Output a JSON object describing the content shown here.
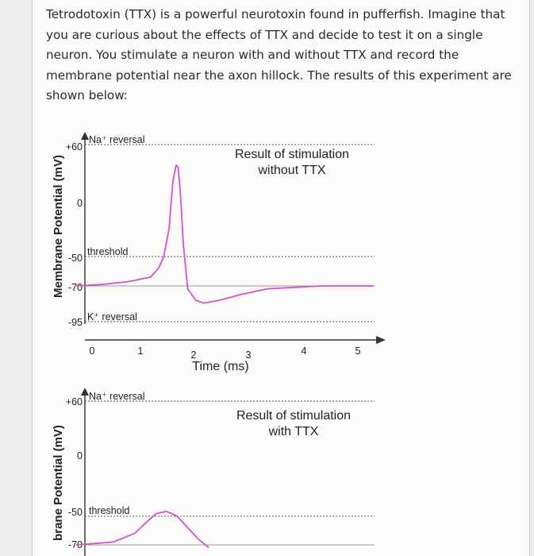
{
  "question": {
    "text": "Tetrodotoxin (TTX) is a powerful neurotoxin found in pufferfish. Imagine that you are curious about the effects of TTX and decide to test it on a single neuron. You stimulate a neuron with and without TTX and record the membrane potential near the axon hillock. The results of this experiment are shown below:"
  },
  "colors": {
    "trace": "#d84fc8",
    "axis": "#333333",
    "baseline": "#999999"
  },
  "chart_data": [
    {
      "type": "line",
      "title_lines": [
        "Result of stimulation",
        "without TTX"
      ],
      "ylabel": "Membrane Potential (mV)",
      "xlabel": "Time (ms)",
      "y_ticks": [
        "+60",
        "0",
        "-50",
        "-70",
        "-95"
      ],
      "x_ticks": [
        "0",
        "1",
        "2",
        "3",
        "4",
        "5"
      ],
      "reference_lines": [
        {
          "label": "Na⁺ reversal",
          "value": 60
        },
        {
          "label": "threshold",
          "value": -50
        },
        {
          "label": "K⁺ reversal",
          "value": -95
        }
      ],
      "x": [
        -0.3,
        0.2,
        0.7,
        1.1,
        1.25,
        1.35,
        1.45,
        1.52,
        1.58,
        1.62,
        1.66,
        1.72,
        1.8,
        1.95,
        2.1,
        2.4,
        2.8,
        3.3,
        3.8,
        4.3,
        5.3
      ],
      "y": [
        -70,
        -69,
        -67,
        -64,
        -58,
        -50,
        -25,
        20,
        38,
        36,
        10,
        -40,
        -72,
        -80,
        -82,
        -80,
        -76,
        -72,
        -71,
        -70,
        -70
      ]
    },
    {
      "type": "line",
      "title_lines": [
        "Result of stimulation",
        "with TTX"
      ],
      "ylabel": "brane Potential (mV)",
      "y_ticks": [
        "+60",
        "0",
        "-50",
        "-70"
      ],
      "reference_lines": [
        {
          "label": "Na⁺ reversal",
          "value": 60
        },
        {
          "label": "threshold",
          "value": -50
        }
      ],
      "x": [
        -0.3,
        0.4,
        0.8,
        1.0,
        1.2,
        1.4,
        1.6,
        1.8,
        2.0,
        2.2
      ],
      "y": [
        -70,
        -68,
        -62,
        -55,
        -48,
        -46,
        -50,
        -58,
        -66,
        -72
      ]
    }
  ]
}
